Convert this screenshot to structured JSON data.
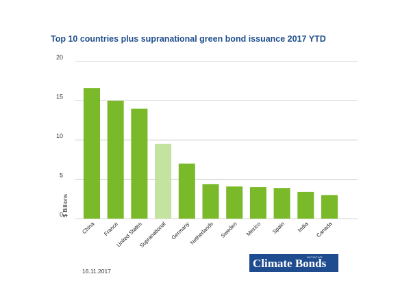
{
  "chart_data": {
    "type": "bar",
    "title": "Top 10 countries plus supranational green bond issuance 2017 YTD",
    "xlabel": "",
    "ylabel": "$ Billions",
    "ylim": [
      0,
      20
    ],
    "yticks": [
      0,
      5,
      10,
      15,
      20
    ],
    "categories": [
      "China",
      "France",
      "United States",
      "Supranational",
      "Germany",
      "Netherlands",
      "Sweden",
      "Mexico",
      "Spain",
      "India",
      "Canada"
    ],
    "values": [
      16.6,
      15.0,
      14.0,
      9.5,
      7.0,
      4.4,
      4.1,
      4.0,
      3.9,
      3.4,
      3.0
    ],
    "highlight_index": 3,
    "colors": {
      "bar": "#7ab929",
      "highlight": "#c4e2a0",
      "grid": "#c8c8c8",
      "title": "#1f4e8c"
    }
  },
  "footer": {
    "date": "16.11.2017"
  },
  "logo": {
    "text": "Climate Bonds",
    "initiative": "INITIATIVE"
  }
}
